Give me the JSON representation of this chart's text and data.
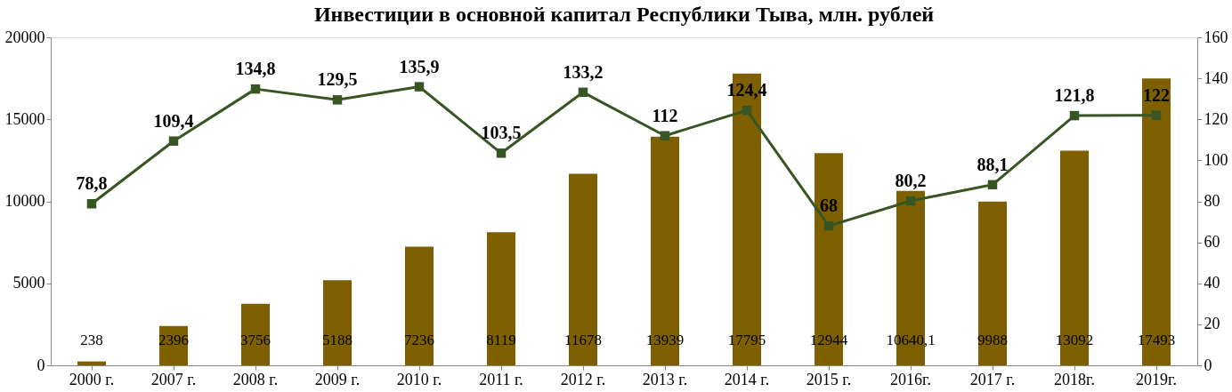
{
  "chart_data": {
    "type": "bar",
    "title": "Инвестиции в основной капитал Республики Тыва, млн. рублей",
    "categories": [
      "2000 г.",
      "2007 г.",
      "2008 г.",
      "2009 г.",
      "2010 г.",
      "2011 г.",
      "2012 г.",
      "2013 г.",
      "2014 г.",
      "2015 г.",
      "2016г.",
      "2017 г.",
      "2018г.",
      "2019г."
    ],
    "series": [
      {
        "color": "#7f6000",
        "values": [
          238,
          2396,
          3756,
          5188,
          7236,
          8119,
          11678,
          13939,
          17795,
          12944,
          10640.1,
          9988,
          13092,
          17493
        ],
        "value_labels": [
          "238",
          "2396",
          "3756",
          "5188",
          "7236",
          "8119",
          "11678",
          "13939",
          "17795",
          "12944",
          "10640,1",
          "9988",
          "13092",
          "17493"
        ]
      },
      {
        "type": "line",
        "axis": "y2",
        "color": "#375623",
        "marker": "square",
        "values": [
          78.8,
          109.4,
          134.8,
          129.5,
          135.9,
          103.5,
          133.2,
          112,
          124.4,
          68,
          80.2,
          88.1,
          121.8,
          122
        ],
        "value_labels": [
          "78,8",
          "109,4",
          "134,8",
          "129,5",
          "135,9",
          "103,5",
          "133,2",
          "112",
          "124,4",
          "68",
          "80,2",
          "88,1",
          "121,8",
          "122"
        ]
      }
    ],
    "ylim": [
      0,
      20000
    ],
    "yticks": [
      0,
      5000,
      10000,
      15000,
      20000
    ],
    "y2lim": [
      0,
      160
    ],
    "y2ticks": [
      0,
      20,
      40,
      60,
      80,
      100,
      120,
      140,
      160
    ],
    "grid": false
  }
}
